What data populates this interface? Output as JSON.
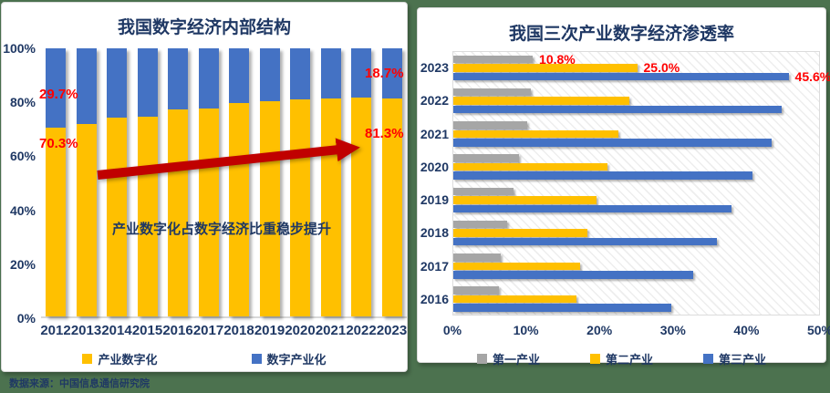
{
  "source_text": "数据来源：中国信息通信研究院",
  "colors": {
    "yellow": "#FFC000",
    "blue": "#4472C4",
    "gray": "#A6A6A6",
    "navy": "#1F3864",
    "red": "#FF0000",
    "arrow_red": "#C00000",
    "bg_green": "#4C724F"
  },
  "chart_data": [
    {
      "type": "bar",
      "variant": "stacked-vertical",
      "title": "我国数字经济内部结构",
      "categories": [
        "2012",
        "2013",
        "2014",
        "2015",
        "2016",
        "2017",
        "2018",
        "2019",
        "2020",
        "2021",
        "2022",
        "2023"
      ],
      "series": [
        {
          "name": "产业数字化",
          "color_key": "yellow",
          "values": [
            70.3,
            71.8,
            74.3,
            74.6,
            77.2,
            77.6,
            79.5,
            80.2,
            80.9,
            81.4,
            81.7,
            81.3
          ]
        },
        {
          "name": "数字产业化",
          "color_key": "blue",
          "values": [
            29.7,
            28.2,
            25.7,
            25.4,
            22.8,
            22.4,
            20.5,
            19.8,
            19.1,
            18.6,
            18.3,
            18.7
          ]
        }
      ],
      "ylim": [
        0,
        100
      ],
      "yticks": [
        "100%",
        "80%",
        "60%",
        "40%",
        "20%",
        "0%"
      ],
      "grid": false,
      "legend_position": "bottom",
      "data_labels": [
        {
          "text": "29.7%",
          "anchor": "2012 数字产业化"
        },
        {
          "text": "70.3%",
          "anchor": "2012 产业数字化"
        },
        {
          "text": "18.7%",
          "anchor": "2023 数字产业化"
        },
        {
          "text": "81.3%",
          "anchor": "2023 产业数字化"
        }
      ],
      "annotation": "产业数字化占数字经济比重稳步提升",
      "trend_arrow": "rising red arrow from 2013 toward 2022"
    },
    {
      "type": "bar",
      "variant": "grouped-horizontal",
      "title": "我国三次产业数字经济渗透率",
      "categories": [
        "2023",
        "2022",
        "2021",
        "2020",
        "2019",
        "2018",
        "2017",
        "2016"
      ],
      "series": [
        {
          "name": "第一产业",
          "color_key": "gray",
          "values": [
            10.8,
            10.5,
            10.0,
            8.9,
            8.2,
            7.3,
            6.5,
            6.2
          ]
        },
        {
          "name": "第二产业",
          "color_key": "yellow",
          "values": [
            25.0,
            24.0,
            22.4,
            21.0,
            19.5,
            18.3,
            17.2,
            16.8
          ]
        },
        {
          "name": "第三产业",
          "color_key": "blue",
          "values": [
            45.6,
            44.7,
            43.3,
            40.7,
            37.8,
            35.9,
            32.6,
            29.6
          ]
        }
      ],
      "xlim": [
        0,
        50
      ],
      "xticks": [
        "0%",
        "10%",
        "20%",
        "30%",
        "40%",
        "50%"
      ],
      "grid": false,
      "legend_position": "bottom",
      "plot_background": "diagonal-hatch",
      "data_labels": [
        {
          "text": "10.8%",
          "category": "2023",
          "series": 0
        },
        {
          "text": "25.0%",
          "category": "2023",
          "series": 1
        },
        {
          "text": "45.6%",
          "category": "2023",
          "series": 2
        }
      ]
    }
  ]
}
